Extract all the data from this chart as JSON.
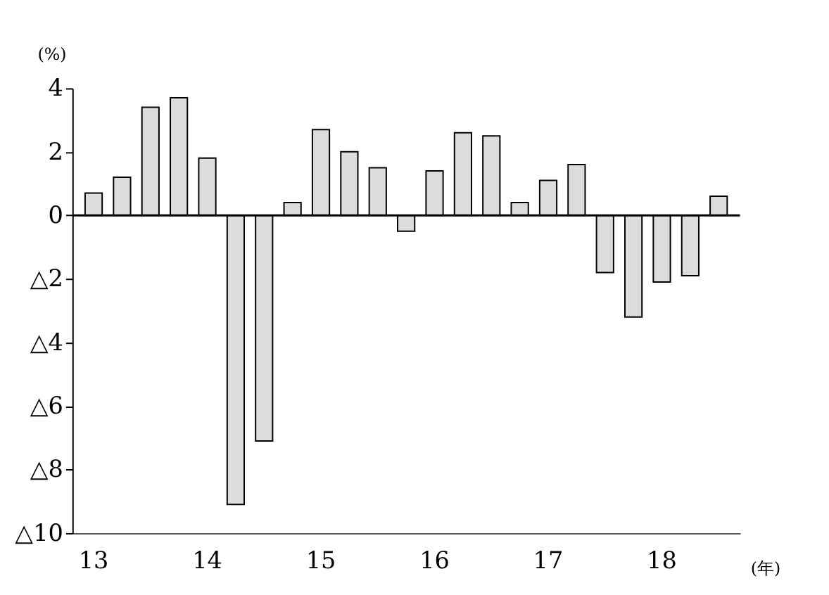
{
  "chart_data": {
    "type": "bar",
    "xlabel": "(年)",
    "ylabel": "(%)",
    "categories": [
      "13",
      null,
      null,
      null,
      "14",
      null,
      null,
      null,
      "15",
      null,
      null,
      null,
      "16",
      null,
      null,
      null,
      "17",
      null,
      null,
      null,
      "18",
      null,
      null
    ],
    "series": [
      {
        "color": "#dcdcdc",
        "values": [
          0.7,
          1.2,
          3.4,
          3.7,
          1.8,
          -9.1,
          -7.1,
          0.4,
          2.7,
          2.0,
          1.5,
          -0.5,
          1.4,
          2.6,
          2.5,
          0.4,
          1.1,
          1.6,
          -1.8,
          -3.2,
          -2.1,
          -1.9,
          0.6
        ]
      }
    ],
    "ylim": [
      -10,
      4
    ],
    "yticks": [
      {
        "value": -10,
        "label": "△10"
      },
      {
        "value": -8,
        "label": "△8"
      },
      {
        "value": -6,
        "label": "△6"
      },
      {
        "value": -4,
        "label": "△4"
      },
      {
        "value": -2,
        "label": "△2"
      },
      0,
      2,
      4
    ],
    "ref_lines": [
      {
        "axis": "y",
        "value": 0,
        "color": "#000000"
      }
    ],
    "grid": false
  }
}
